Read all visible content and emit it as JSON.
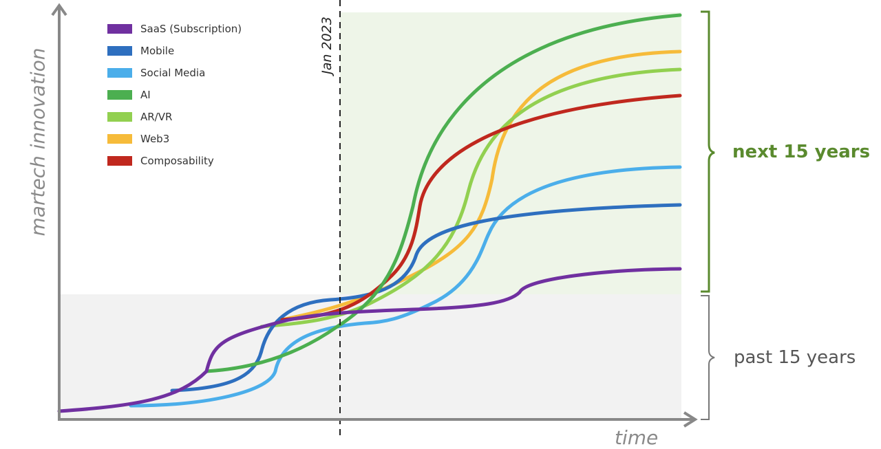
{
  "y_axis_label": "martech innovation",
  "x_axis_label": "time",
  "marker_label": "Jan 2023",
  "future_label": "next 15 years",
  "past_label": "past 15 years",
  "colors": {
    "future_region": "#eef5e8",
    "past_region": "#f2f2f2",
    "future_text": "#5a8a2e",
    "past_text": "#555555"
  },
  "legend": [
    {
      "label": "SaaS (Subscription)",
      "color": "#7030a0"
    },
    {
      "label": "Mobile",
      "color": "#2e6fbf"
    },
    {
      "label": "Social Media",
      "color": "#4baeea"
    },
    {
      "label": "AI",
      "color": "#4caf50"
    },
    {
      "label": "AR/VR",
      "color": "#92d050"
    },
    {
      "label": "Web3",
      "color": "#f6bb3a"
    },
    {
      "label": "Composability",
      "color": "#c0281e"
    }
  ]
}
